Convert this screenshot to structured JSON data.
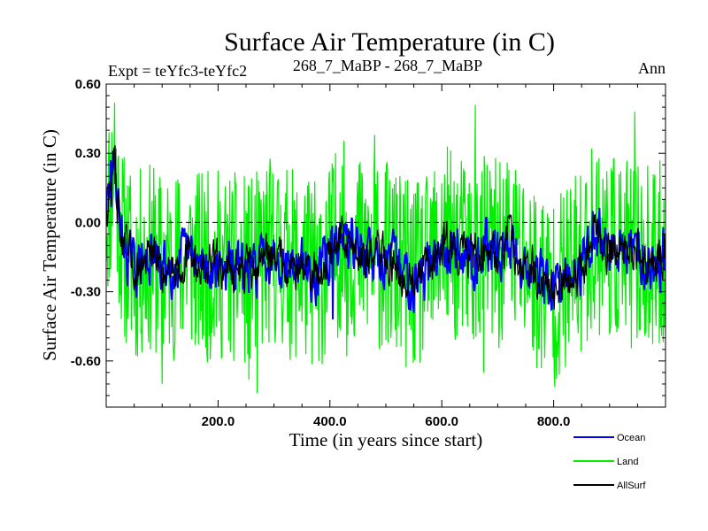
{
  "chart_data": {
    "type": "line",
    "title": "Surface Air Temperature (in C)",
    "subtitle_left": "Expt = teYfc3-teYfc2",
    "subtitle_center": "268_7_MaBP - 268_7_MaBP",
    "subtitle_right": "Ann",
    "xlabel": "Time (in years since start)",
    "ylabel": "Surface Air Temperature (in C)",
    "xlim": [
      0,
      1000
    ],
    "ylim": [
      -0.8,
      0.6
    ],
    "xticks": [
      200,
      400,
      600,
      800
    ],
    "xtick_labels": [
      "200.0",
      "400.0",
      "600.0",
      "800.0"
    ],
    "yticks": [
      0.6,
      0.3,
      0.0,
      -0.3,
      -0.6
    ],
    "ytick_labels": [
      "0.60",
      "0.30",
      "0.00",
      "-0.30",
      "-0.60"
    ],
    "reference_line": 0.0,
    "legend": [
      {
        "name": "Ocean",
        "color": "#0000ff"
      },
      {
        "name": "Land",
        "color": "#00ee00"
      },
      {
        "name": "AllSurf",
        "color": "#000000"
      }
    ],
    "series": [
      {
        "name": "Land",
        "color": "#00ee00",
        "anchors_x": [
          0,
          10,
          15,
          20,
          30,
          50,
          80,
          100,
          120,
          150,
          170,
          200,
          230,
          260,
          280,
          300,
          330,
          350,
          380,
          400,
          420,
          450,
          480,
          500,
          550,
          580,
          600,
          620,
          650,
          680,
          700,
          720,
          750,
          780,
          800,
          850,
          870,
          900,
          930,
          950,
          980,
          1000
        ],
        "anchors_y": [
          0.05,
          0.15,
          0.3,
          0.1,
          -0.1,
          -0.2,
          -0.15,
          -0.2,
          -0.18,
          -0.15,
          -0.2,
          -0.18,
          -0.2,
          -0.22,
          -0.15,
          -0.12,
          -0.18,
          -0.2,
          -0.22,
          -0.15,
          -0.05,
          -0.12,
          -0.15,
          -0.15,
          -0.25,
          -0.2,
          -0.08,
          -0.1,
          -0.15,
          -0.1,
          -0.15,
          -0.08,
          -0.18,
          -0.25,
          -0.3,
          -0.18,
          -0.05,
          -0.1,
          -0.15,
          -0.12,
          -0.2,
          -0.1
        ],
        "noise_amplitude": 0.42,
        "extremes": [
          [
            15,
            0.52
          ],
          [
            100,
            -0.7
          ],
          [
            255,
            -0.68
          ],
          [
            270,
            -0.74
          ],
          [
            380,
            -0.6
          ],
          [
            430,
            -0.58
          ],
          [
            480,
            0.38
          ],
          [
            660,
            0.51
          ],
          [
            675,
            -0.65
          ],
          [
            770,
            -0.63
          ],
          [
            945,
            0.48
          ],
          [
            970,
            -0.5
          ]
        ]
      },
      {
        "name": "Ocean",
        "color": "#0000ff",
        "anchors_x": [
          0,
          10,
          15,
          20,
          30,
          50,
          80,
          100,
          120,
          150,
          170,
          200,
          230,
          260,
          280,
          300,
          330,
          350,
          380,
          400,
          420,
          450,
          480,
          500,
          550,
          580,
          600,
          620,
          650,
          680,
          700,
          720,
          750,
          780,
          800,
          850,
          870,
          900,
          930,
          950,
          980,
          1000
        ],
        "anchors_y": [
          0.05,
          0.15,
          0.3,
          0.1,
          -0.1,
          -0.2,
          -0.15,
          -0.2,
          -0.18,
          -0.15,
          -0.2,
          -0.18,
          -0.2,
          -0.22,
          -0.15,
          -0.12,
          -0.18,
          -0.2,
          -0.22,
          -0.15,
          -0.05,
          -0.12,
          -0.15,
          -0.15,
          -0.25,
          -0.2,
          -0.08,
          -0.1,
          -0.15,
          -0.1,
          -0.15,
          -0.08,
          -0.18,
          -0.25,
          -0.3,
          -0.18,
          -0.05,
          -0.1,
          -0.15,
          -0.12,
          -0.2,
          -0.1
        ],
        "noise_amplitude": 0.09,
        "extremes": [
          [
            8,
            0.27
          ],
          [
            405,
            -0.42
          ],
          [
            870,
            0.05
          ]
        ]
      },
      {
        "name": "AllSurf",
        "color": "#000000",
        "anchors_x": [
          0,
          10,
          15,
          20,
          30,
          50,
          80,
          100,
          120,
          150,
          170,
          200,
          230,
          260,
          280,
          300,
          330,
          350,
          380,
          400,
          420,
          450,
          480,
          500,
          550,
          580,
          600,
          620,
          650,
          680,
          700,
          720,
          750,
          780,
          800,
          850,
          870,
          900,
          930,
          950,
          980,
          1000
        ],
        "anchors_y": [
          0.05,
          0.15,
          0.3,
          0.1,
          -0.1,
          -0.2,
          -0.15,
          -0.2,
          -0.18,
          -0.15,
          -0.2,
          -0.18,
          -0.2,
          -0.22,
          -0.15,
          -0.12,
          -0.18,
          -0.2,
          -0.22,
          -0.15,
          -0.05,
          -0.12,
          -0.15,
          -0.15,
          -0.25,
          -0.2,
          -0.08,
          -0.1,
          -0.15,
          -0.1,
          -0.15,
          -0.08,
          -0.18,
          -0.25,
          -0.3,
          -0.18,
          -0.05,
          -0.1,
          -0.15,
          -0.12,
          -0.2,
          -0.1
        ],
        "noise_amplitude": 0.08,
        "extremes": []
      }
    ]
  }
}
